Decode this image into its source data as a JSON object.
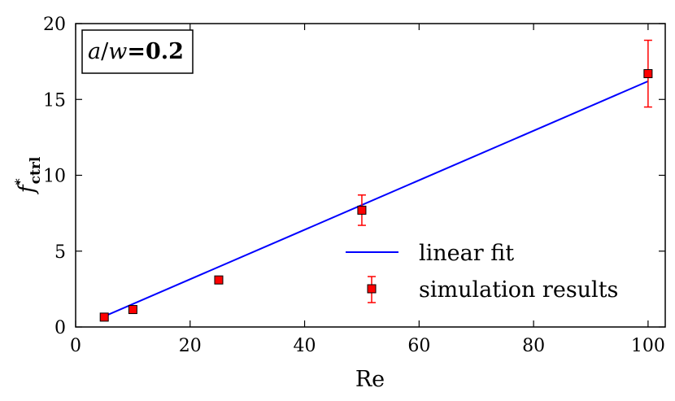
{
  "chart_data": {
    "type": "scatter",
    "title": "",
    "xlabel": "Re",
    "ylabel": "f*ctrl",
    "ylabel_parts": {
      "base": "f",
      "sup": "*",
      "sub": "ctrl"
    },
    "xlim": [
      0,
      103
    ],
    "ylim": [
      0,
      20
    ],
    "xticks": [
      0,
      20,
      40,
      60,
      80,
      100
    ],
    "yticks": [
      0,
      5,
      10,
      15,
      20
    ],
    "grid": false,
    "annotation": {
      "text": "a/w=0.2",
      "parts": {
        "var_a": "a",
        "slash": "/",
        "var_w": "w",
        "value": "=0.2"
      },
      "placement": "top-left"
    },
    "legend_placement": "lower-right",
    "series": [
      {
        "name": "linear fit",
        "kind": "line",
        "color": "#0000ff",
        "x": [
          5,
          100
        ],
        "y": [
          0.7,
          16.2
        ]
      },
      {
        "name": "simulation results",
        "kind": "errorbar",
        "marker": "square",
        "color": "#ff0000",
        "ecolor": "#ff0000",
        "x": [
          5,
          10,
          25,
          50,
          100
        ],
        "y": [
          0.65,
          1.15,
          3.1,
          7.7,
          16.7
        ],
        "yerr": [
          0,
          0,
          0,
          1.0,
          2.2
        ]
      }
    ]
  }
}
